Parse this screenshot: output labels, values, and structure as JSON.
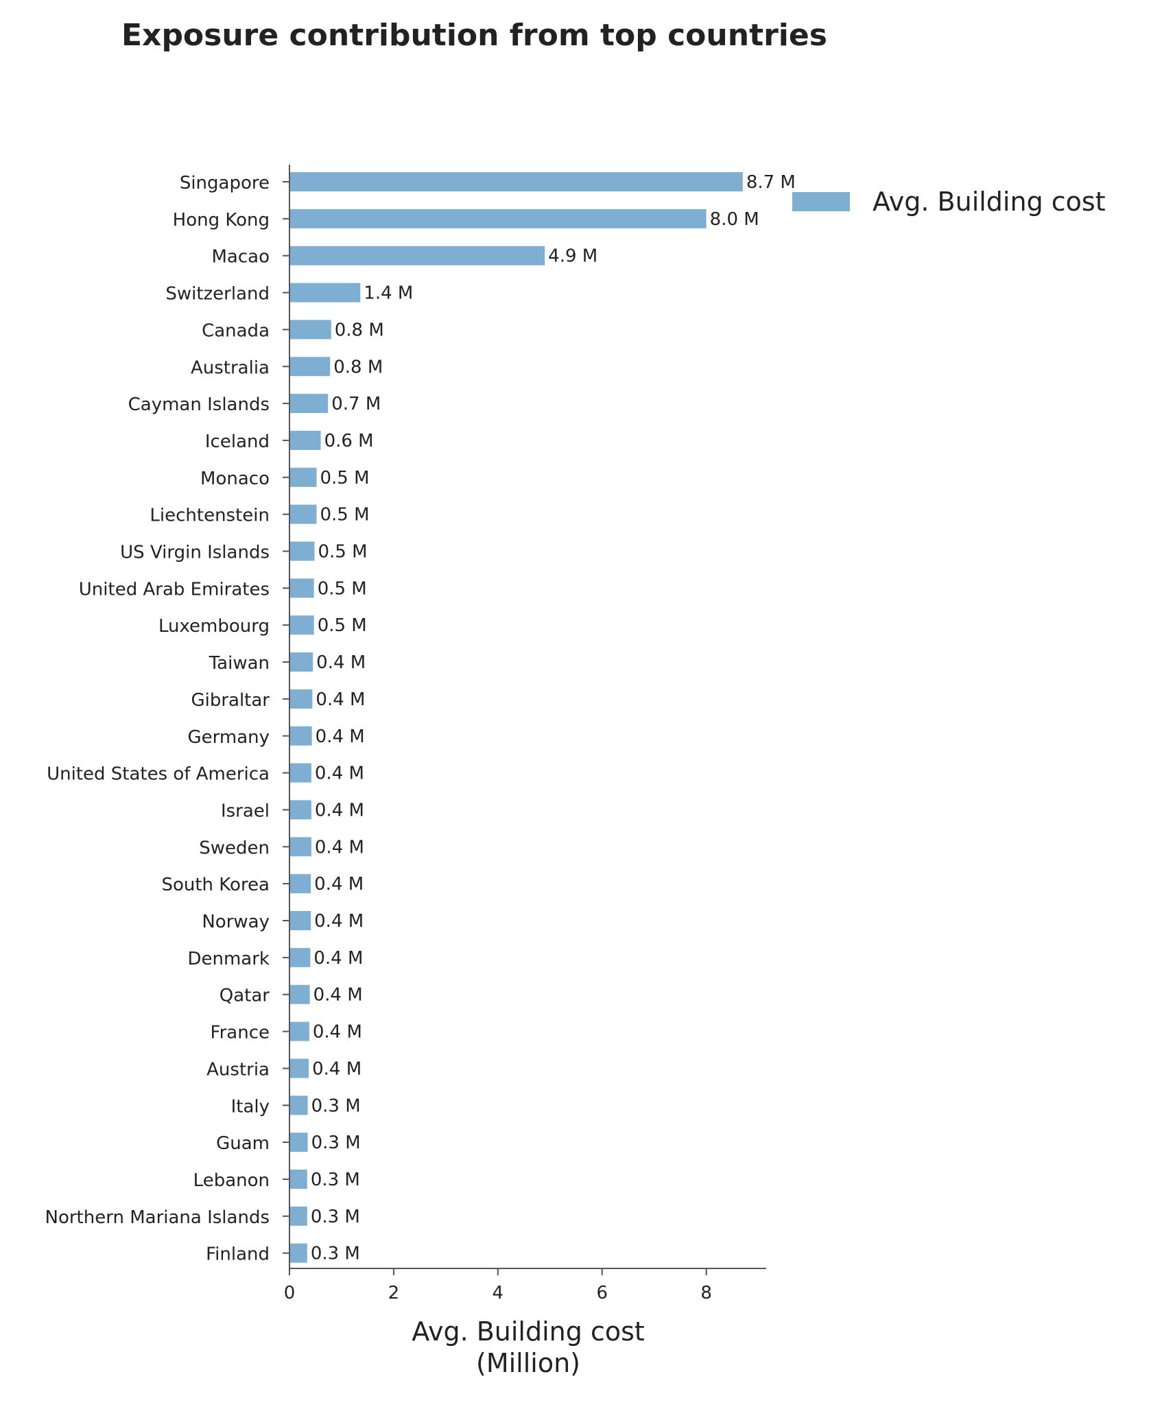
{
  "chart_data": {
    "type": "bar",
    "orientation": "horizontal",
    "title": "Exposure contribution from top countries",
    "xlabel_lines": [
      "Avg. Building cost",
      "(Million)"
    ],
    "ylabel": "",
    "xlim": [
      0,
      9.15
    ],
    "xticks": [
      0,
      2,
      4,
      6,
      8
    ],
    "grid": false,
    "legend_position": "top-right-outside",
    "bar_color": "#7faed3",
    "series": [
      {
        "name": "Avg. Building cost",
        "categories": [
          "Singapore",
          "Hong Kong",
          "Macao",
          "Switzerland",
          "Canada",
          "Australia",
          "Cayman Islands",
          "Iceland",
          "Monaco",
          "Liechtenstein",
          "US Virgin Islands",
          "United Arab Emirates",
          "Luxembourg",
          "Taiwan",
          "Gibraltar",
          "Germany",
          "United States of America",
          "Israel",
          "Sweden",
          "South Korea",
          "Norway",
          "Denmark",
          "Qatar",
          "France",
          "Austria",
          "Italy",
          "Guam",
          "Lebanon",
          "Northern Mariana Islands",
          "Finland"
        ],
        "values": [
          8.7,
          8.0,
          4.9,
          1.36,
          0.8,
          0.78,
          0.74,
          0.6,
          0.52,
          0.52,
          0.48,
          0.47,
          0.47,
          0.45,
          0.44,
          0.43,
          0.42,
          0.42,
          0.42,
          0.41,
          0.41,
          0.4,
          0.39,
          0.38,
          0.37,
          0.35,
          0.35,
          0.34,
          0.34,
          0.34
        ],
        "labels": [
          "8.7 M",
          "8.0 M",
          "4.9 M",
          "1.4 M",
          "0.8 M",
          "0.8 M",
          "0.7 M",
          "0.6 M",
          "0.5 M",
          "0.5 M",
          "0.5 M",
          "0.5 M",
          "0.5 M",
          "0.4 M",
          "0.4 M",
          "0.4 M",
          "0.4 M",
          "0.4 M",
          "0.4 M",
          "0.4 M",
          "0.4 M",
          "0.4 M",
          "0.4 M",
          "0.4 M",
          "0.4 M",
          "0.3 M",
          "0.3 M",
          "0.3 M",
          "0.3 M",
          "0.3 M"
        ]
      }
    ]
  }
}
